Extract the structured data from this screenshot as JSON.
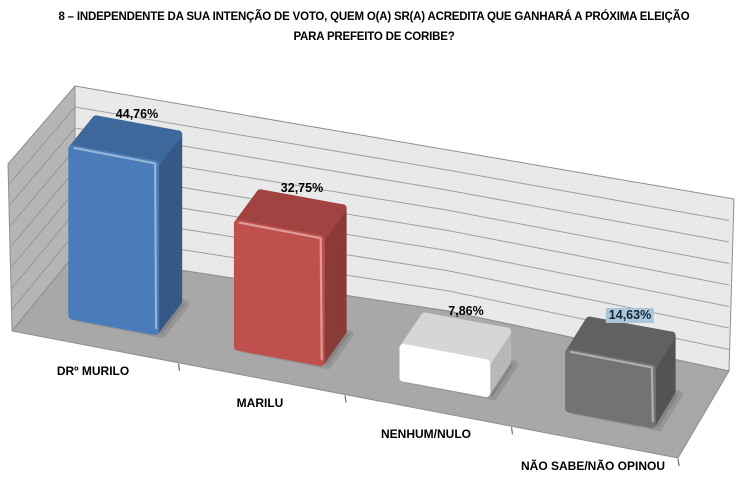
{
  "chart_data": {
    "type": "bar",
    "projection": "3d-perspective",
    "title": "8 – INDEPENDENTE DA SUA INTENÇÃO DE VOTO, QUEM O(A) SR(A) ACREDITA QUE GANHARÁ A PRÓXIMA ELEIÇÃO\nPARA PREFEITO DE CORIBE?",
    "categories": [
      "DRº MURILO",
      "MARILU",
      "NENHUM/NULO",
      "NÃO SABE/NÃO OPINOU"
    ],
    "values": [
      44.76,
      32.75,
      7.86,
      14.63
    ],
    "value_labels": [
      "44,76%",
      "32,75%",
      "7,86%",
      "14,63%"
    ],
    "value_unit": "%",
    "bar_colors": [
      "#4a7cba",
      "#c0504d",
      "#ffffff",
      "#737373"
    ],
    "ylim": [
      0,
      45
    ],
    "grid_intervals": 8,
    "grid": true,
    "legend": false,
    "xlabel": "",
    "ylabel": "",
    "highlighted_label": {
      "index": 3,
      "background": "#adc6d7",
      "text_color": "#10243e"
    },
    "walls": {
      "back": "#e9e9e9",
      "side": "#b5b5b5",
      "floor": "#a8a8a8",
      "gridline": "#a0a0a0",
      "edge": "#8f8f8f",
      "tick": "#6e6e6e"
    }
  }
}
